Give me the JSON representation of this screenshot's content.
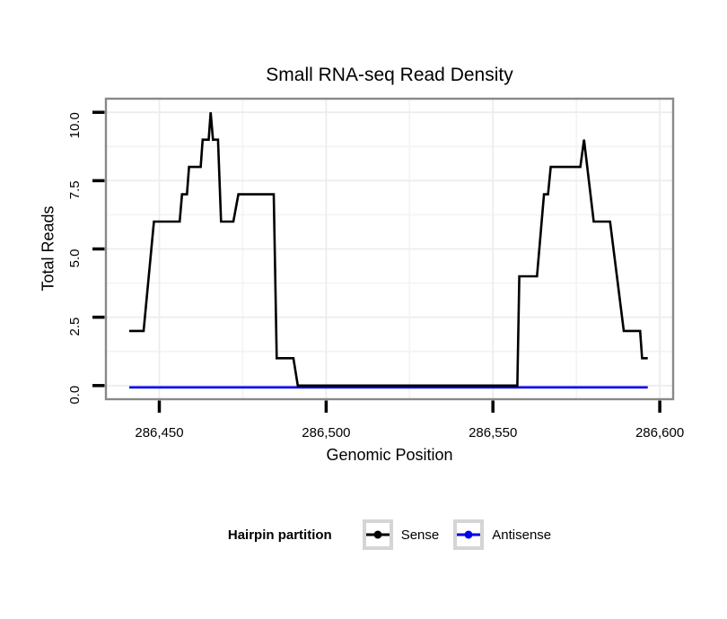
{
  "chart_data": {
    "type": "line",
    "title": "Small RNA-seq Read Density",
    "xlabel": "Genomic Position",
    "ylabel": "Total Reads",
    "legend_title": "Hairpin partition",
    "legend_position": "bottom",
    "grid": "major+minor",
    "xlim": [
      286434,
      286604
    ],
    "ylim": [
      -0.5,
      10.5
    ],
    "x_ticks": [
      286450,
      286500,
      286550,
      286600
    ],
    "x_tick_labels": [
      "286,450",
      "286,500",
      "286,550",
      "286,600"
    ],
    "y_ticks": [
      0,
      2.5,
      5,
      7.5,
      10
    ],
    "y_tick_labels": [
      "0.0",
      "2.5",
      "5.0",
      "7.5",
      "10.0"
    ],
    "x_minor_ticks": [
      286475,
      286525,
      286575
    ],
    "y_minor_ticks": [
      1.25,
      3.75,
      6.25,
      8.75
    ],
    "colors": {
      "grid_major": "#EDEDED",
      "grid_minor": "#F4F4F4",
      "panel_border": "#898989",
      "tick": "#000000",
      "text": "#000000",
      "sense": "#000000",
      "antisense": "#0000EE"
    },
    "series": [
      {
        "name": "Sense",
        "color": "#000000",
        "points": [
          [
            286441,
            2
          ],
          [
            286445.3,
            2
          ],
          [
            286448.4,
            6
          ],
          [
            286456.1,
            6
          ],
          [
            286456.8,
            7
          ],
          [
            286458.3,
            7
          ],
          [
            286458.9,
            8
          ],
          [
            286462.4,
            8
          ],
          [
            286463,
            9
          ],
          [
            286464.8,
            9
          ],
          [
            286465.4,
            10
          ],
          [
            286466.1,
            9
          ],
          [
            286467.6,
            9
          ],
          [
            286468.5,
            6
          ],
          [
            286472.2,
            6
          ],
          [
            286473.7,
            7
          ],
          [
            286484.3,
            7
          ],
          [
            286485.2,
            1
          ],
          [
            286490.2,
            1
          ],
          [
            286491.5,
            0
          ],
          [
            286557.3,
            0
          ],
          [
            286557.9,
            4
          ],
          [
            286563.2,
            4
          ],
          [
            286565.3,
            7
          ],
          [
            286566.5,
            7
          ],
          [
            286567.3,
            8
          ],
          [
            286576.2,
            8
          ],
          [
            286577.3,
            9
          ],
          [
            286580.2,
            6
          ],
          [
            286585.1,
            6
          ],
          [
            286589.2,
            2
          ],
          [
            286594.1,
            2
          ],
          [
            286594.7,
            1
          ],
          [
            286596.4,
            1
          ]
        ]
      },
      {
        "name": "Antisense",
        "color": "#0000EE",
        "points": [
          [
            286441,
            0
          ],
          [
            286596.4,
            0
          ]
        ]
      }
    ]
  }
}
